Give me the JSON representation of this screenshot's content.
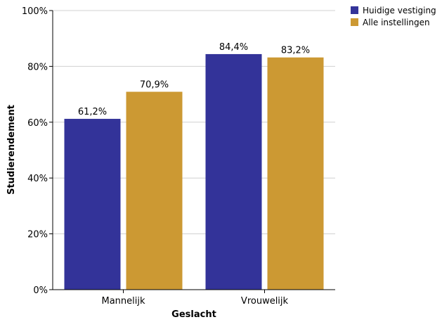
{
  "chart_data": {
    "type": "bar",
    "xlabel": "Geslacht",
    "ylabel": "Studierendement",
    "categories": [
      "Mannelijk",
      "Vrouwelijk"
    ],
    "series": [
      {
        "name": "Huidige vestiging",
        "color": "#333399",
        "values": [
          61.2,
          84.4
        ],
        "labels": [
          "61,2%",
          "84,4%"
        ]
      },
      {
        "name": "Alle instellingen",
        "color": "#cc9933",
        "values": [
          70.9,
          83.2
        ],
        "labels": [
          "70,9%",
          "83,2%"
        ]
      }
    ],
    "ylim": [
      0,
      100
    ],
    "yticks": [
      0,
      20,
      40,
      60,
      80,
      100
    ],
    "ytick_labels": [
      "0%",
      "20%",
      "40%",
      "60%",
      "80%",
      "100%"
    ],
    "grid": true,
    "legend_position": "top-right"
  }
}
